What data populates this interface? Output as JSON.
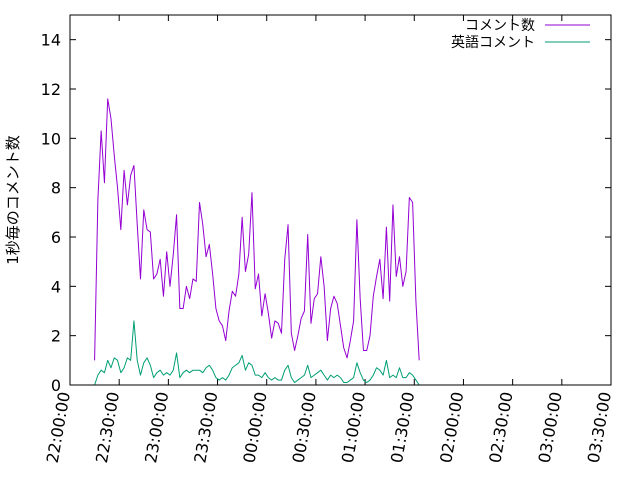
{
  "chart_data": {
    "type": "line",
    "title": "",
    "xlabel": "",
    "ylabel": "1秒毎のコメント数",
    "ylim": [
      0,
      15
    ],
    "yticks": [
      0,
      2,
      4,
      6,
      8,
      10,
      12,
      14
    ],
    "xlim": [
      "22:00:00",
      "03:30:00"
    ],
    "xticks": [
      "22:00:00",
      "22:30:00",
      "23:00:00",
      "23:30:00",
      "00:00:00",
      "00:30:00",
      "01:00:00",
      "01:30:00",
      "02:00:00",
      "02:30:00",
      "03:00:00",
      "03:30:00"
    ],
    "grid": false,
    "legend": "top-right",
    "series": [
      {
        "name": "コメント数",
        "color": "#9400d3",
        "points": [
          [
            "22:15:00",
            1.0
          ],
          [
            "22:17:00",
            7.5
          ],
          [
            "22:19:00",
            10.3
          ],
          [
            "22:21:00",
            8.2
          ],
          [
            "22:23:00",
            11.6
          ],
          [
            "22:25:00",
            10.8
          ],
          [
            "22:27:00",
            9.3
          ],
          [
            "22:29:00",
            8.0
          ],
          [
            "22:31:00",
            6.3
          ],
          [
            "22:33:00",
            8.7
          ],
          [
            "22:35:00",
            7.3
          ],
          [
            "22:37:00",
            8.5
          ],
          [
            "22:39:00",
            8.9
          ],
          [
            "22:41:00",
            6.5
          ],
          [
            "22:43:00",
            4.3
          ],
          [
            "22:45:00",
            7.1
          ],
          [
            "22:47:00",
            6.3
          ],
          [
            "22:49:00",
            6.2
          ],
          [
            "22:51:00",
            4.3
          ],
          [
            "22:53:00",
            4.5
          ],
          [
            "22:55:00",
            5.1
          ],
          [
            "22:57:00",
            3.6
          ],
          [
            "22:59:00",
            5.4
          ],
          [
            "23:01:00",
            4.0
          ],
          [
            "23:03:00",
            5.3
          ],
          [
            "23:05:00",
            6.9
          ],
          [
            "23:07:00",
            3.1
          ],
          [
            "23:09:00",
            3.1
          ],
          [
            "23:11:00",
            4.0
          ],
          [
            "23:13:00",
            3.5
          ],
          [
            "23:15:00",
            4.3
          ],
          [
            "23:17:00",
            4.2
          ],
          [
            "23:19:00",
            7.4
          ],
          [
            "23:21:00",
            6.5
          ],
          [
            "23:23:00",
            5.2
          ],
          [
            "23:25:00",
            5.7
          ],
          [
            "23:27:00",
            4.5
          ],
          [
            "23:29:00",
            3.1
          ],
          [
            "23:31:00",
            2.6
          ],
          [
            "23:33:00",
            2.4
          ],
          [
            "23:35:00",
            1.8
          ],
          [
            "23:37:00",
            3.0
          ],
          [
            "23:39:00",
            3.8
          ],
          [
            "23:41:00",
            3.6
          ],
          [
            "23:43:00",
            4.5
          ],
          [
            "23:45:00",
            6.8
          ],
          [
            "23:47:00",
            4.6
          ],
          [
            "23:49:00",
            5.3
          ],
          [
            "23:51:00",
            7.8
          ],
          [
            "23:53:00",
            3.9
          ],
          [
            "23:55:00",
            4.5
          ],
          [
            "23:57:00",
            2.8
          ],
          [
            "23:59:00",
            3.7
          ],
          [
            "00:01:00",
            2.9
          ],
          [
            "00:03:00",
            1.9
          ],
          [
            "00:05:00",
            2.6
          ],
          [
            "00:07:00",
            2.5
          ],
          [
            "00:09:00",
            2.1
          ],
          [
            "00:11:00",
            5.1
          ],
          [
            "00:13:00",
            6.5
          ],
          [
            "00:15:00",
            2.1
          ],
          [
            "00:17:00",
            1.4
          ],
          [
            "00:19:00",
            2.0
          ],
          [
            "00:21:00",
            2.7
          ],
          [
            "00:23:00",
            3.0
          ],
          [
            "00:25:00",
            6.1
          ],
          [
            "00:27:00",
            2.5
          ],
          [
            "00:29:00",
            3.5
          ],
          [
            "00:31:00",
            3.7
          ],
          [
            "00:33:00",
            5.2
          ],
          [
            "00:35:00",
            4.0
          ],
          [
            "00:37:00",
            1.8
          ],
          [
            "00:39:00",
            3.1
          ],
          [
            "00:41:00",
            3.6
          ],
          [
            "00:43:00",
            3.3
          ],
          [
            "00:45:00",
            2.4
          ],
          [
            "00:47:00",
            1.5
          ],
          [
            "00:49:00",
            1.1
          ],
          [
            "00:51:00",
            1.8
          ],
          [
            "00:53:00",
            2.6
          ],
          [
            "00:55:00",
            6.7
          ],
          [
            "00:57:00",
            3.5
          ],
          [
            "00:59:00",
            1.4
          ],
          [
            "01:01:00",
            1.4
          ],
          [
            "01:03:00",
            2.0
          ],
          [
            "01:05:00",
            3.6
          ],
          [
            "01:07:00",
            4.4
          ],
          [
            "01:09:00",
            5.1
          ],
          [
            "01:11:00",
            3.5
          ],
          [
            "01:13:00",
            6.4
          ],
          [
            "01:15:00",
            3.4
          ],
          [
            "01:17:00",
            7.3
          ],
          [
            "01:19:00",
            4.4
          ],
          [
            "01:21:00",
            5.2
          ],
          [
            "01:23:00",
            4.0
          ],
          [
            "01:25:00",
            4.6
          ],
          [
            "01:27:00",
            7.6
          ],
          [
            "01:29:00",
            7.4
          ],
          [
            "01:31:00",
            3.4
          ],
          [
            "01:33:00",
            1.0
          ]
        ]
      },
      {
        "name": "英語コメント",
        "color": "#009e73",
        "points": [
          [
            "22:15:00",
            0.0
          ],
          [
            "22:17:00",
            0.4
          ],
          [
            "22:19:00",
            0.6
          ],
          [
            "22:21:00",
            0.5
          ],
          [
            "22:23:00",
            1.0
          ],
          [
            "22:25:00",
            0.7
          ],
          [
            "22:27:00",
            1.1
          ],
          [
            "22:29:00",
            1.0
          ],
          [
            "22:31:00",
            0.5
          ],
          [
            "22:33:00",
            0.7
          ],
          [
            "22:35:00",
            1.1
          ],
          [
            "22:37:00",
            1.0
          ],
          [
            "22:39:00",
            2.6
          ],
          [
            "22:41:00",
            1.0
          ],
          [
            "22:43:00",
            0.4
          ],
          [
            "22:45:00",
            0.9
          ],
          [
            "22:47:00",
            1.1
          ],
          [
            "22:49:00",
            0.8
          ],
          [
            "22:51:00",
            0.3
          ],
          [
            "22:53:00",
            0.5
          ],
          [
            "22:55:00",
            0.6
          ],
          [
            "22:57:00",
            0.4
          ],
          [
            "22:59:00",
            0.5
          ],
          [
            "23:01:00",
            0.4
          ],
          [
            "23:03:00",
            0.6
          ],
          [
            "23:05:00",
            1.3
          ],
          [
            "23:07:00",
            0.3
          ],
          [
            "23:09:00",
            0.5
          ],
          [
            "23:11:00",
            0.6
          ],
          [
            "23:13:00",
            0.5
          ],
          [
            "23:15:00",
            0.6
          ],
          [
            "23:17:00",
            0.6
          ],
          [
            "23:19:00",
            0.6
          ],
          [
            "23:21:00",
            0.5
          ],
          [
            "23:23:00",
            0.7
          ],
          [
            "23:25:00",
            0.8
          ],
          [
            "23:27:00",
            0.6
          ],
          [
            "23:29:00",
            0.3
          ],
          [
            "23:31:00",
            0.2
          ],
          [
            "23:33:00",
            0.3
          ],
          [
            "23:35:00",
            0.2
          ],
          [
            "23:37:00",
            0.4
          ],
          [
            "23:39:00",
            0.7
          ],
          [
            "23:41:00",
            0.8
          ],
          [
            "23:43:00",
            0.9
          ],
          [
            "23:45:00",
            1.2
          ],
          [
            "23:47:00",
            0.6
          ],
          [
            "23:49:00",
            0.9
          ],
          [
            "23:51:00",
            0.8
          ],
          [
            "23:53:00",
            0.4
          ],
          [
            "23:55:00",
            0.4
          ],
          [
            "23:57:00",
            0.3
          ],
          [
            "23:59:00",
            0.5
          ],
          [
            "00:01:00",
            0.3
          ],
          [
            "00:03:00",
            0.2
          ],
          [
            "00:05:00",
            0.3
          ],
          [
            "00:07:00",
            0.2
          ],
          [
            "00:09:00",
            0.2
          ],
          [
            "00:11:00",
            0.6
          ],
          [
            "00:13:00",
            0.8
          ],
          [
            "00:15:00",
            0.3
          ],
          [
            "00:17:00",
            0.1
          ],
          [
            "00:19:00",
            0.2
          ],
          [
            "00:21:00",
            0.3
          ],
          [
            "00:23:00",
            0.4
          ],
          [
            "00:25:00",
            0.8
          ],
          [
            "00:27:00",
            0.3
          ],
          [
            "00:29:00",
            0.4
          ],
          [
            "00:31:00",
            0.5
          ],
          [
            "00:33:00",
            0.6
          ],
          [
            "00:35:00",
            0.4
          ],
          [
            "00:37:00",
            0.2
          ],
          [
            "00:39:00",
            0.4
          ],
          [
            "00:41:00",
            0.3
          ],
          [
            "00:43:00",
            0.4
          ],
          [
            "00:45:00",
            0.3
          ],
          [
            "00:47:00",
            0.1
          ],
          [
            "00:49:00",
            0.1
          ],
          [
            "00:51:00",
            0.2
          ],
          [
            "00:53:00",
            0.3
          ],
          [
            "00:55:00",
            0.9
          ],
          [
            "00:57:00",
            0.5
          ],
          [
            "00:59:00",
            0.2
          ],
          [
            "01:01:00",
            0.1
          ],
          [
            "01:03:00",
            0.2
          ],
          [
            "01:05:00",
            0.4
          ],
          [
            "01:07:00",
            0.7
          ],
          [
            "01:09:00",
            0.6
          ],
          [
            "01:11:00",
            0.4
          ],
          [
            "01:13:00",
            1.0
          ],
          [
            "01:15:00",
            0.3
          ],
          [
            "01:17:00",
            0.4
          ],
          [
            "01:19:00",
            0.3
          ],
          [
            "01:21:00",
            0.7
          ],
          [
            "01:23:00",
            0.3
          ],
          [
            "01:25:00",
            0.3
          ],
          [
            "01:27:00",
            0.5
          ],
          [
            "01:29:00",
            0.4
          ],
          [
            "01:31:00",
            0.2
          ],
          [
            "01:33:00",
            0.0
          ]
        ]
      }
    ]
  }
}
